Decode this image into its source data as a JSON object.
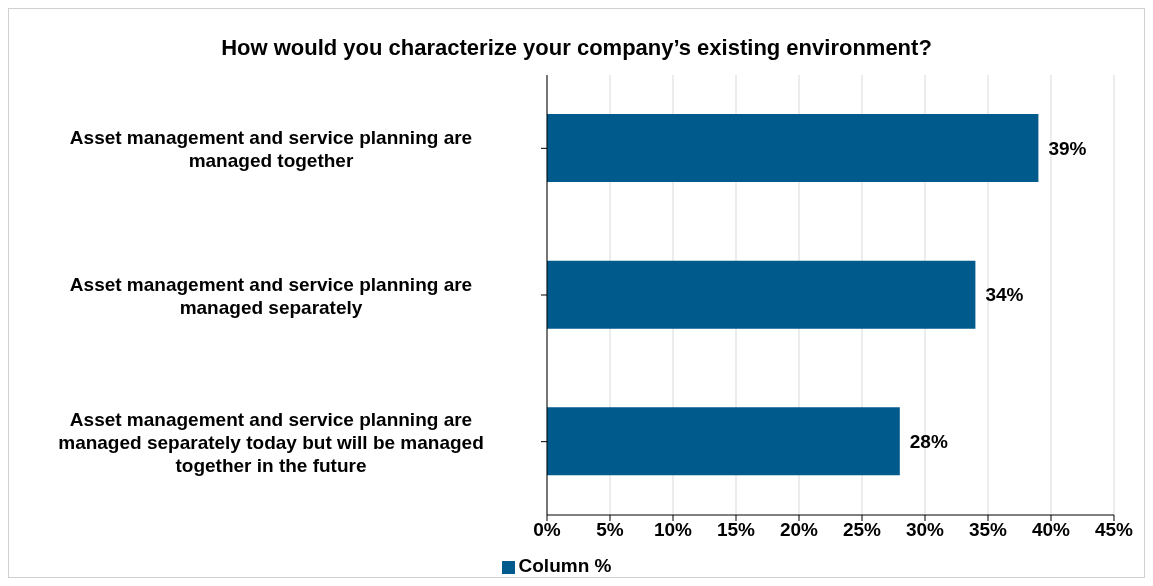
{
  "chart_data": {
    "type": "bar",
    "orientation": "horizontal",
    "title": "How would you characterize your company’s existing environment?",
    "categories": [
      "Asset management and service planning are managed together",
      "Asset management and service planning are managed separately",
      "Asset management and service planning are managed separately today but will be managed together in the future"
    ],
    "series": [
      {
        "name": "Column %",
        "color": "#005a8c",
        "values": [
          39,
          34,
          28
        ]
      }
    ],
    "value_labels": [
      "39%",
      "34%",
      "28%"
    ],
    "xlim": [
      0,
      45
    ],
    "xticks": [
      {
        "value": 0,
        "label": "0%"
      },
      {
        "value": 5,
        "label": "5%"
      },
      {
        "value": 10,
        "label": "10%"
      },
      {
        "value": 15,
        "label": "15%"
      },
      {
        "value": 20,
        "label": "20%"
      },
      {
        "value": 25,
        "label": "25%"
      },
      {
        "value": 30,
        "label": "30%"
      },
      {
        "value": 35,
        "label": "35%"
      },
      {
        "value": 40,
        "label": "40%"
      },
      {
        "value": 45,
        "label": "45%"
      }
    ],
    "grid": "x",
    "legend": "bottom"
  }
}
